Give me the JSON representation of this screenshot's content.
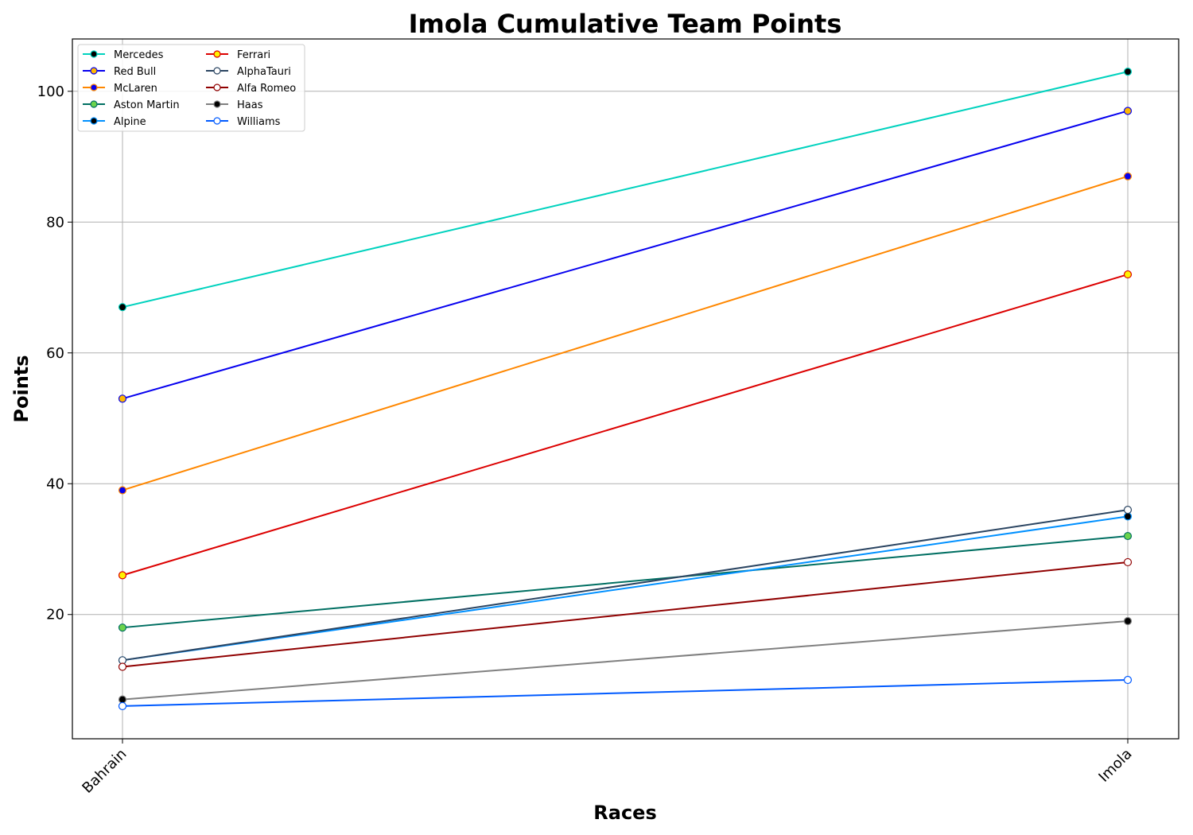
{
  "chart_data": {
    "type": "line",
    "title": "Imola Cumulative Team Points",
    "xlabel": "Races",
    "ylabel": "Points",
    "categories": [
      "Bahrain",
      "Imola"
    ],
    "ylim": [
      1,
      108
    ],
    "yticks": [
      20,
      40,
      60,
      80,
      100
    ],
    "grid": true,
    "legend": "upper-left",
    "series": [
      {
        "name": "Mercedes",
        "values": [
          67,
          103
        ],
        "color": "#00d2be",
        "marker_face": "#000000",
        "marker_edge": "#00d2be"
      },
      {
        "name": "Red Bull",
        "values": [
          53,
          97
        ],
        "color": "#0600ef",
        "marker_face": "#ffb800",
        "marker_edge": "#0600ef"
      },
      {
        "name": "McLaren",
        "values": [
          39,
          87
        ],
        "color": "#ff8700",
        "marker_face": "#0600ef",
        "marker_edge": "#ff8700"
      },
      {
        "name": "Aston Martin",
        "values": [
          18,
          32
        ],
        "color": "#006f62",
        "marker_face": "#6cd34c",
        "marker_edge": "#006f62"
      },
      {
        "name": "Alpine",
        "values": [
          13,
          35
        ],
        "color": "#0090ff",
        "marker_face": "#000000",
        "marker_edge": "#0090ff"
      },
      {
        "name": "Ferrari",
        "values": [
          26,
          72
        ],
        "color": "#dc0000",
        "marker_face": "#fff200",
        "marker_edge": "#dc0000"
      },
      {
        "name": "AlphaTauri",
        "values": [
          13,
          36
        ],
        "color": "#2b4562",
        "marker_face": "#ffffff",
        "marker_edge": "#2b4562"
      },
      {
        "name": "Alfa Romeo",
        "values": [
          12,
          28
        ],
        "color": "#900000",
        "marker_face": "#ffffff",
        "marker_edge": "#900000"
      },
      {
        "name": "Haas",
        "values": [
          7,
          19
        ],
        "color": "#808080",
        "marker_face": "#000000",
        "marker_edge": "#808080"
      },
      {
        "name": "Williams",
        "values": [
          6,
          10
        ],
        "color": "#005aff",
        "marker_face": "#ffffff",
        "marker_edge": "#005aff"
      }
    ]
  }
}
